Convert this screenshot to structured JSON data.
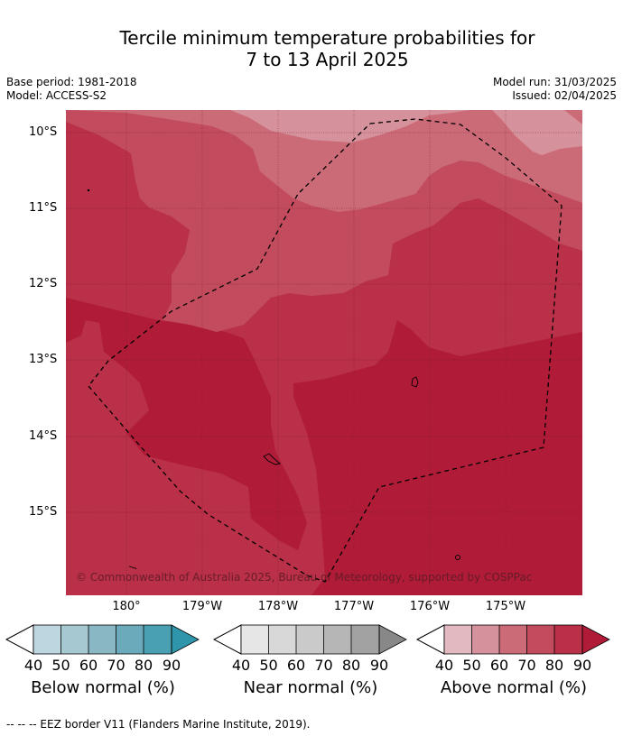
{
  "header": {
    "title_line1": "Tercile minimum temperature probabilities for",
    "title_line2": "7 to 13 April 2025",
    "base_period": "Base period: 1981-2018",
    "model": "Model: ACCESS-S2",
    "model_run": "Model run: 31/03/2025",
    "issued": "Issued: 02/04/2025"
  },
  "map": {
    "lat_labels": [
      "10°S",
      "11°S",
      "12°S",
      "13°S",
      "14°S",
      "15°S"
    ],
    "lon_labels": [
      "180°",
      "179°W",
      "178°W",
      "177°W",
      "176°W",
      "175°W"
    ],
    "copyright": "© Commonwealth of Australia 2025, Bureau of Meteorology, supported by COSPPac",
    "colors": {
      "above_40": "#e2b9c0",
      "above_50": "#d6929c",
      "above_60": "#cc6b78",
      "above_70": "#c24c5d",
      "above_80": "#b93048",
      "above_90": "#b01c38"
    }
  },
  "legends": [
    {
      "title": "Below normal (%)",
      "ticks": [
        "40",
        "50",
        "60",
        "70",
        "80",
        "90"
      ],
      "colors": [
        "#bed6df",
        "#a6c8d0",
        "#89b7c4",
        "#6aaabb",
        "#49a0b3",
        "#2f95ab"
      ]
    },
    {
      "title": "Near normal (%)",
      "ticks": [
        "40",
        "50",
        "60",
        "70",
        "80",
        "90"
      ],
      "colors": [
        "#e6e6e6",
        "#d8d8d8",
        "#cacaca",
        "#b6b6b6",
        "#a2a2a2",
        "#888888"
      ]
    },
    {
      "title": "Above normal (%)",
      "ticks": [
        "40",
        "50",
        "60",
        "70",
        "80",
        "90"
      ],
      "colors": [
        "#e2b9c0",
        "#d6929c",
        "#cc6b78",
        "#c24c5d",
        "#b93048",
        "#b01c38"
      ]
    }
  ],
  "footer": "--  --  -- EEZ border V11 (Flanders Marine Institute, 2019)."
}
